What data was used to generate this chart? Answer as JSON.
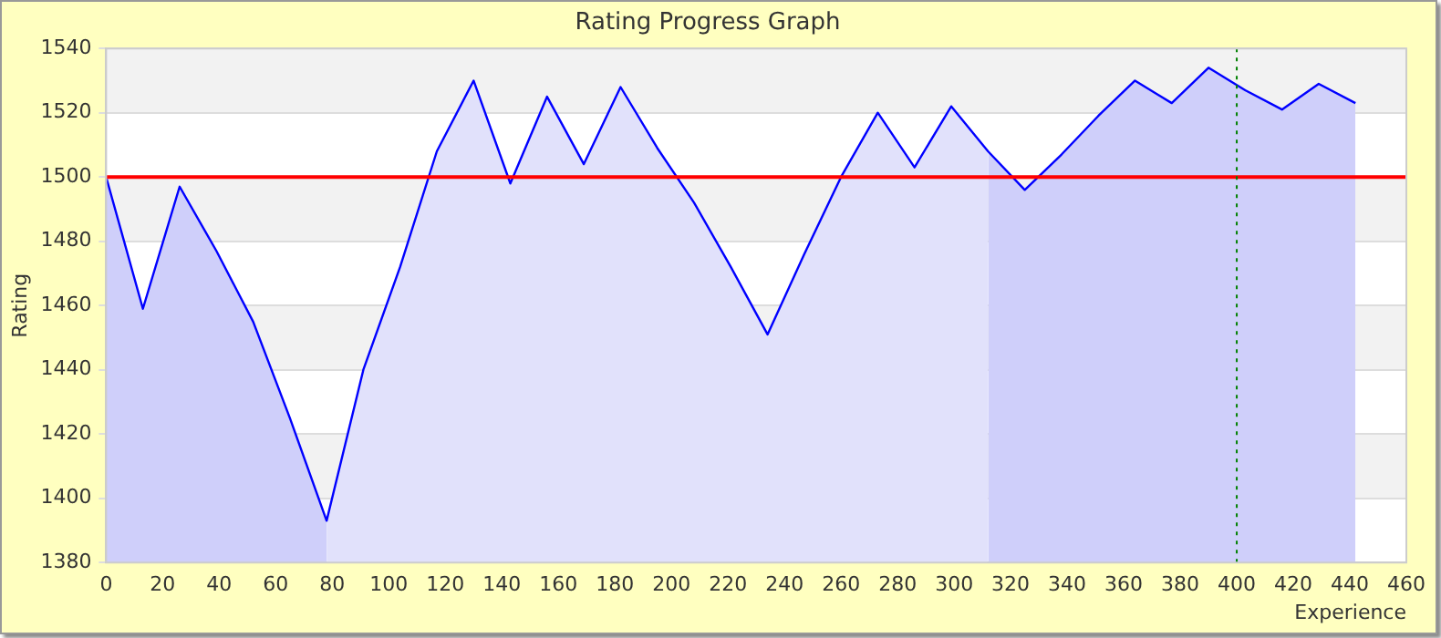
{
  "chart_data": {
    "type": "line",
    "title": "Rating Progress Graph",
    "xlabel": "Experience",
    "ylabel": "Rating",
    "xlim": [
      0,
      460
    ],
    "xticks": [
      0,
      20,
      40,
      60,
      80,
      100,
      120,
      140,
      160,
      180,
      200,
      220,
      240,
      260,
      280,
      300,
      320,
      340,
      360,
      380,
      400,
      420,
      440,
      460
    ],
    "ylim": [
      1380,
      1540
    ],
    "yticks": [
      1380,
      1400,
      1420,
      1440,
      1460,
      1480,
      1500,
      1520,
      1540
    ],
    "grid": "y",
    "legend": false,
    "marker": "none",
    "series": [
      {
        "color": "#0000ff",
        "x": [
          0,
          13,
          26,
          39,
          52,
          65,
          78,
          91,
          104,
          117,
          130,
          143,
          156,
          169,
          182,
          195,
          208,
          221,
          234,
          247,
          260,
          273,
          286,
          299,
          312,
          325,
          338,
          351,
          364,
          377,
          390,
          403,
          416,
          429,
          442
        ],
        "values": [
          1500,
          1459,
          1497,
          1477,
          1455,
          1425,
          1393,
          1440,
          1472,
          1508,
          1530,
          1498,
          1525,
          1504,
          1528,
          1509,
          1492,
          1472,
          1451,
          1476,
          1500,
          1520,
          1503,
          1522,
          1508,
          1496,
          1507,
          1519,
          1530,
          1523,
          1534,
          1527,
          1521,
          1529,
          1523
        ]
      },
      {
        "type": "area",
        "color": "#cfcffa",
        "x": [
          0,
          13,
          26,
          39,
          52,
          65,
          78
        ],
        "values": [
          1500,
          1459,
          1497,
          1477,
          1455,
          1425,
          1393
        ]
      },
      {
        "type": "area",
        "color": "#e1e1fb",
        "x": [
          78,
          91,
          104,
          117,
          130,
          143,
          156,
          169,
          182,
          195,
          208,
          221,
          234,
          247,
          260,
          273,
          286,
          299,
          312
        ],
        "values": [
          1393,
          1440,
          1472,
          1508,
          1530,
          1498,
          1525,
          1504,
          1528,
          1509,
          1492,
          1472,
          1451,
          1476,
          1500,
          1520,
          1503,
          1522,
          1508
        ]
      },
      {
        "type": "area",
        "color": "#cfcffa",
        "x": [
          312,
          325,
          338,
          351,
          364,
          377,
          390,
          403,
          416,
          429,
          442
        ],
        "values": [
          1508,
          1496,
          1507,
          1519,
          1530,
          1523,
          1534,
          1527,
          1521,
          1529,
          1523
        ]
      }
    ],
    "ref_lines": [
      {
        "axis": "y",
        "value": 1500,
        "color": "#ff0000",
        "line_style": "solid"
      },
      {
        "axis": "x",
        "value": 400,
        "color": "#008000",
        "line_style": "dotted"
      }
    ]
  }
}
